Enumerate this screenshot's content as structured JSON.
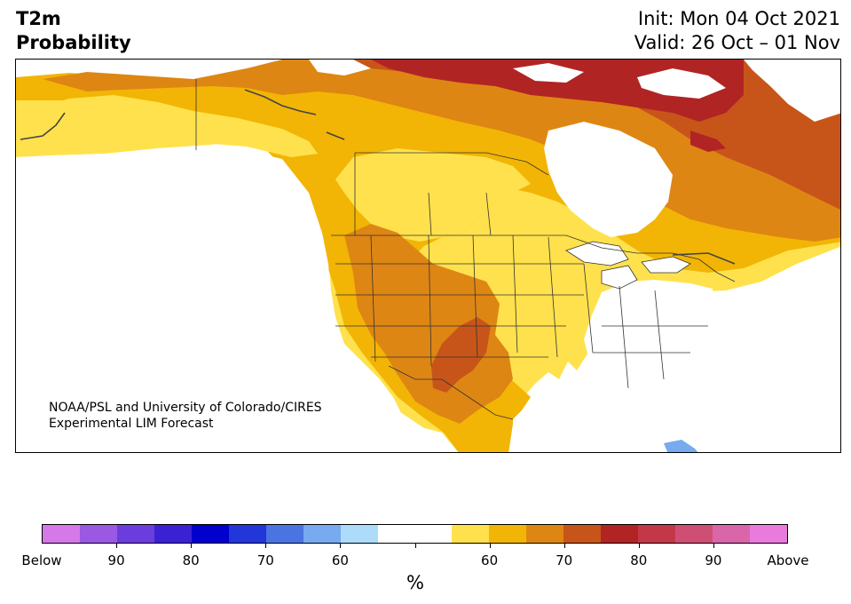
{
  "title": {
    "line1": "T2m",
    "line2": "Probability"
  },
  "dates": {
    "init": "Init: Mon 04 Oct 2021",
    "valid": "Valid: 26 Oct – 01 Nov"
  },
  "credit": {
    "line1": "NOAA/PSL and University of Colorado/CIRES",
    "line2": "Experimental LIM Forecast"
  },
  "colorbar": {
    "colors": [
      "#d579e8",
      "#9a58e3",
      "#6a3ddc",
      "#3a22d4",
      "#0200cd",
      "#2236d9",
      "#4b74e3",
      "#77aaee",
      "#addcfa",
      "#ffffff",
      "#ffffff",
      "#ffe14d",
      "#f2b505",
      "#de8613",
      "#c75519",
      "#b12424",
      "#c23848",
      "#cf4f74",
      "#d966a9",
      "#e87bdc"
    ],
    "tick_labels": [
      "Below",
      "90",
      "80",
      "70",
      "60",
      "",
      "60",
      "70",
      "80",
      "90",
      "Above"
    ],
    "unit": "%"
  },
  "map_colors": {
    "p60": "#ffe14d",
    "p65": "#f2b505",
    "p70": "#de8613",
    "p75": "#c75519",
    "p80": "#b12424",
    "below55": "#77aaee",
    "water": "#ffffff",
    "border": "#333333"
  }
}
